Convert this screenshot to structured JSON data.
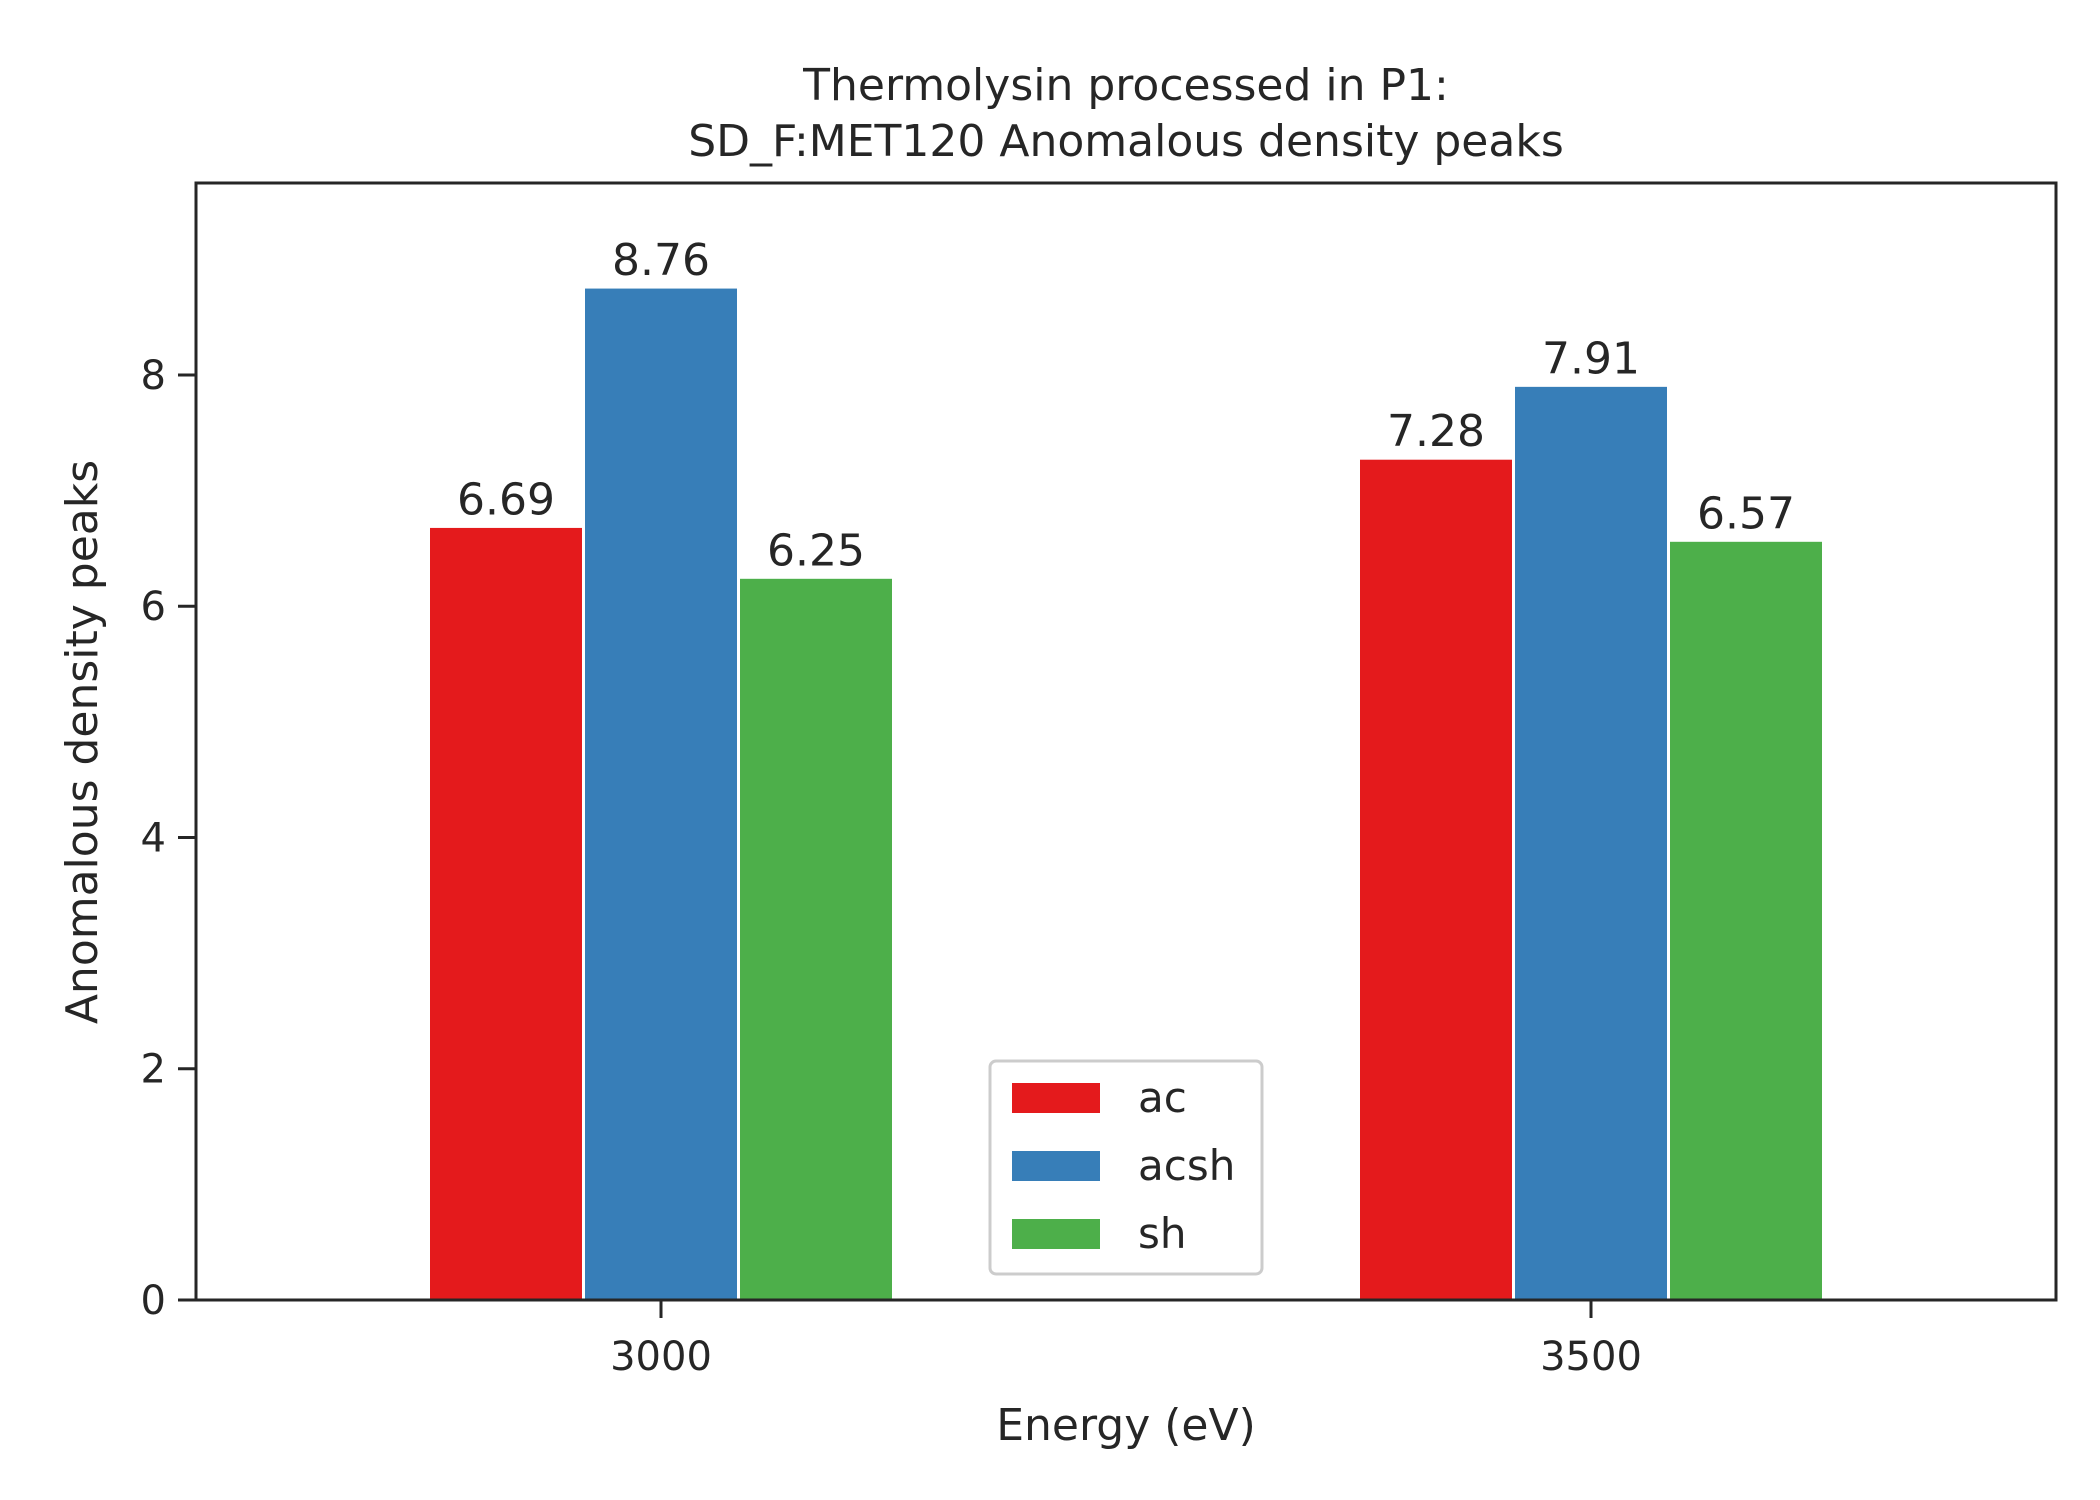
{
  "chart_data": {
    "type": "bar",
    "title": "Thermolysin processed in P1:",
    "subtitle": "SD_F:MET120 Anomalous density peaks",
    "xlabel": "Energy (eV)",
    "ylabel": "Anomalous density peaks",
    "categories": [
      "3000",
      "3500"
    ],
    "series": [
      {
        "name": "ac",
        "values": [
          6.69,
          7.28
        ],
        "color": "#e41a1c"
      },
      {
        "name": "acsh",
        "values": [
          8.76,
          7.91
        ],
        "color": "#377eb8"
      },
      {
        "name": "sh",
        "values": [
          6.25,
          6.57
        ],
        "color": "#4daf4a"
      }
    ],
    "ylim": [
      0,
      9.66
    ],
    "yticks": [
      0,
      2,
      4,
      6,
      8
    ],
    "grid": false,
    "legend_position": "lower center"
  }
}
